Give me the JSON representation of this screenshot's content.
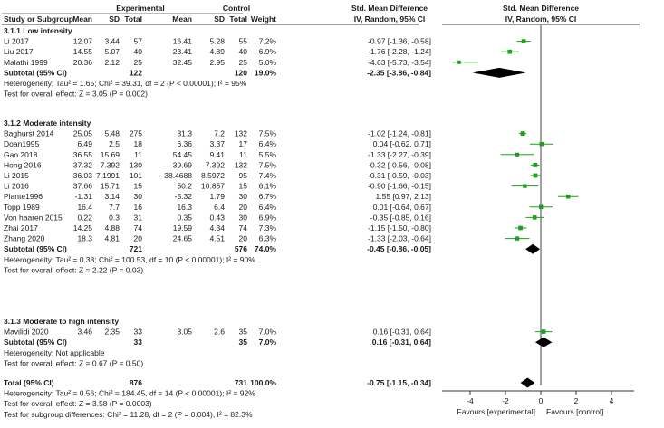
{
  "headers": {
    "experimental": "Experimental",
    "control": "Control",
    "smd": "Std. Mean Difference",
    "smd2": "Std. Mean Difference",
    "study": "Study or Subgroup",
    "mean_e": "Mean",
    "sd_e": "SD",
    "total_e": "Total",
    "mean_c": "Mean",
    "sd_c": "SD",
    "total_c": "Total",
    "weight": "Weight",
    "ci": "IV, Random, 95% CI",
    "ci2": "IV, Random, 95% CI"
  },
  "chart_data": {
    "type": "forest",
    "x_axis": {
      "min": -5,
      "max": 5,
      "ticks": [
        "-4",
        "-2",
        "0",
        "2",
        "4"
      ],
      "tick_values": [
        -4,
        -2,
        0,
        2,
        4
      ]
    },
    "favours_left": "Favours [experimental]",
    "favours_right": "Favours [control]",
    "groups": [
      {
        "title": "3.1.1 Low intensity",
        "studies": [
          {
            "name": "Li 2017",
            "mean_e": "12.07",
            "sd_e": "3.44",
            "n_e": "57",
            "mean_c": "16.41",
            "sd_c": "5.28",
            "n_c": "55",
            "weight": "7.2%",
            "ci": "-0.97 [-1.36, -0.58]",
            "est": -0.97,
            "lo": -1.36,
            "hi": -0.58,
            "w": 7.2
          },
          {
            "name": "Liu 2017",
            "mean_e": "14.55",
            "sd_e": "5.07",
            "n_e": "40",
            "mean_c": "23.41",
            "sd_c": "4.89",
            "n_c": "40",
            "weight": "6.9%",
            "ci": "-1.76 [-2.28, -1.24]",
            "est": -1.76,
            "lo": -2.28,
            "hi": -1.24,
            "w": 6.9
          },
          {
            "name": "Malathi 1999",
            "mean_e": "20.36",
            "sd_e": "2.12",
            "n_e": "25",
            "mean_c": "32.45",
            "sd_c": "2.95",
            "n_c": "25",
            "weight": "5.0%",
            "ci": "-4.63 [-5.73, -3.54]",
            "est": -4.63,
            "lo": -5.73,
            "hi": -3.54,
            "w": 5.0
          }
        ],
        "subtotal": {
          "label": "Subtotal (95% CI)",
          "n_e": "122",
          "n_c": "120",
          "weight": "19.0%",
          "ci": "-2.35 [-3.86, -0.84]",
          "est": -2.35,
          "lo": -3.86,
          "hi": -0.84
        },
        "heterogeneity": "Heterogeneity: Tau² = 1.65; Chi² = 39.31, df = 2 (P < 0.00001); I² = 95%",
        "overall": "Test for overall effect: Z = 3.05 (P = 0.002)"
      },
      {
        "title": "3.1.2 Moderate intensity",
        "studies": [
          {
            "name": "Baghurst 2014",
            "mean_e": "25.05",
            "sd_e": "5.48",
            "n_e": "275",
            "mean_c": "31.3",
            "sd_c": "7.2",
            "n_c": "132",
            "weight": "7.5%",
            "ci": "-1.02 [-1.24, -0.81]",
            "est": -1.02,
            "lo": -1.24,
            "hi": -0.81,
            "w": 7.5
          },
          {
            "name": "Doan1995",
            "mean_e": "6.49",
            "sd_e": "2.5",
            "n_e": "18",
            "mean_c": "6.36",
            "sd_c": "3.37",
            "n_c": "17",
            "weight": "6.4%",
            "ci": "0.04 [-0.62, 0.71]",
            "est": 0.04,
            "lo": -0.62,
            "hi": 0.71,
            "w": 6.4
          },
          {
            "name": "Gao 2018",
            "mean_e": "36.55",
            "sd_e": "15.69",
            "n_e": "11",
            "mean_c": "54.45",
            "sd_c": "9.41",
            "n_c": "11",
            "weight": "5.5%",
            "ci": "-1.33 [-2.27, -0.39]",
            "est": -1.33,
            "lo": -2.27,
            "hi": -0.39,
            "w": 5.5
          },
          {
            "name": "Hong 2016",
            "mean_e": "37.32",
            "sd_e": "7.392",
            "n_e": "130",
            "mean_c": "39.69",
            "sd_c": "7.392",
            "n_c": "132",
            "weight": "7.5%",
            "ci": "-0.32 [-0.56, -0.08]",
            "est": -0.32,
            "lo": -0.56,
            "hi": -0.08,
            "w": 7.5
          },
          {
            "name": "Li 2015",
            "mean_e": "36.03",
            "sd_e": "7.1991",
            "n_e": "101",
            "mean_c": "38.4688",
            "sd_c": "8.5972",
            "n_c": "95",
            "weight": "7.4%",
            "ci": "-0.31 [-0.59, -0.03]",
            "est": -0.31,
            "lo": -0.59,
            "hi": -0.03,
            "w": 7.4
          },
          {
            "name": "Li 2016",
            "mean_e": "37.66",
            "sd_e": "15.71",
            "n_e": "15",
            "mean_c": "50.2",
            "sd_c": "10.857",
            "n_c": "15",
            "weight": "6.1%",
            "ci": "-0.90 [-1.66, -0.15]",
            "est": -0.9,
            "lo": -1.66,
            "hi": -0.15,
            "w": 6.1
          },
          {
            "name": "Plante1996",
            "mean_e": "-1.31",
            "sd_e": "3.14",
            "n_e": "30",
            "mean_c": "-5.32",
            "sd_c": "1.79",
            "n_c": "30",
            "weight": "6.7%",
            "ci": "1.55 [0.97, 2.13]",
            "est": 1.55,
            "lo": 0.97,
            "hi": 2.13,
            "w": 6.7
          },
          {
            "name": "Topp 1989",
            "mean_e": "16.4",
            "sd_e": "7.7",
            "n_e": "16",
            "mean_c": "16.3",
            "sd_c": "6.4",
            "n_c": "20",
            "weight": "6.4%",
            "ci": "0.01 [-0.64, 0.67]",
            "est": 0.01,
            "lo": -0.64,
            "hi": 0.67,
            "w": 6.4
          },
          {
            "name": "Von haaren 2015",
            "mean_e": "0.22",
            "sd_e": "0.3",
            "n_e": "31",
            "mean_c": "0.35",
            "sd_c": "0.43",
            "n_c": "30",
            "weight": "6.9%",
            "ci": "-0.35 [-0.85, 0.16]",
            "est": -0.35,
            "lo": -0.85,
            "hi": 0.16,
            "w": 6.9
          },
          {
            "name": "Zhai 2017",
            "mean_e": "14.25",
            "sd_e": "4.88",
            "n_e": "74",
            "mean_c": "19.59",
            "sd_c": "4.34",
            "n_c": "74",
            "weight": "7.3%",
            "ci": "-1.15 [-1.50, -0.80]",
            "est": -1.15,
            "lo": -1.5,
            "hi": -0.8,
            "w": 7.3
          },
          {
            "name": "Zhang 2020",
            "mean_e": "18.3",
            "sd_e": "4.81",
            "n_e": "20",
            "mean_c": "24.65",
            "sd_c": "4.51",
            "n_c": "20",
            "weight": "6.3%",
            "ci": "-1.33 [-2.03, -0.64]",
            "est": -1.33,
            "lo": -2.03,
            "hi": -0.64,
            "w": 6.3
          }
        ],
        "subtotal": {
          "label": "Subtotal (95% CI)",
          "n_e": "721",
          "n_c": "576",
          "weight": "74.0%",
          "ci": "-0.45 [-0.86, -0.05]",
          "est": -0.45,
          "lo": -0.86,
          "hi": -0.05
        },
        "heterogeneity": "Heterogeneity: Tau² = 0.38; Chi² = 100.53, df = 10 (P < 0.00001); I² = 90%",
        "overall": "Test for overall effect: Z = 2.22 (P = 0.03)"
      },
      {
        "title": "3.1.3 Moderate to high intensity",
        "studies": [
          {
            "name": "Mavilidi 2020",
            "mean_e": "3.46",
            "sd_e": "2.35",
            "n_e": "33",
            "mean_c": "3.05",
            "sd_c": "2.6",
            "n_c": "35",
            "weight": "7.0%",
            "ci": "0.16 [-0.31, 0.64]",
            "est": 0.16,
            "lo": -0.31,
            "hi": 0.64,
            "w": 7.0
          }
        ],
        "subtotal": {
          "label": "Subtotal (95% CI)",
          "n_e": "33",
          "n_c": "35",
          "weight": "7.0%",
          "ci": "0.16 [-0.31, 0.64]",
          "est": 0.16,
          "lo": -0.31,
          "hi": 0.64
        },
        "heterogeneity": "Heterogeneity: Not applicable",
        "overall": "Test for overall effect: Z = 0.67 (P = 0.50)"
      }
    ],
    "total": {
      "label": "Total (95% CI)",
      "n_e": "876",
      "n_c": "731",
      "weight": "100.0%",
      "ci": "-0.75 [-1.15, -0.34]",
      "est": -0.75,
      "lo": -1.15,
      "hi": -0.34
    },
    "total_heterogeneity": "Heterogeneity: Tau² = 0.56; Chi² = 184.45, df = 14 (P < 0.00001); I² = 92%",
    "total_overall": "Test for overall effect: Z = 3.58 (P = 0.0003)",
    "subgroup_test": "Test for subgroup differences: Chi² = 11.28, df = 2 (P = 0.004), I² = 82.3%",
    "colors": {
      "ci_line": "#1e9e1e",
      "box": "#1e9e1e",
      "diamond": "#000000",
      "text": "#1a1a1a"
    }
  }
}
